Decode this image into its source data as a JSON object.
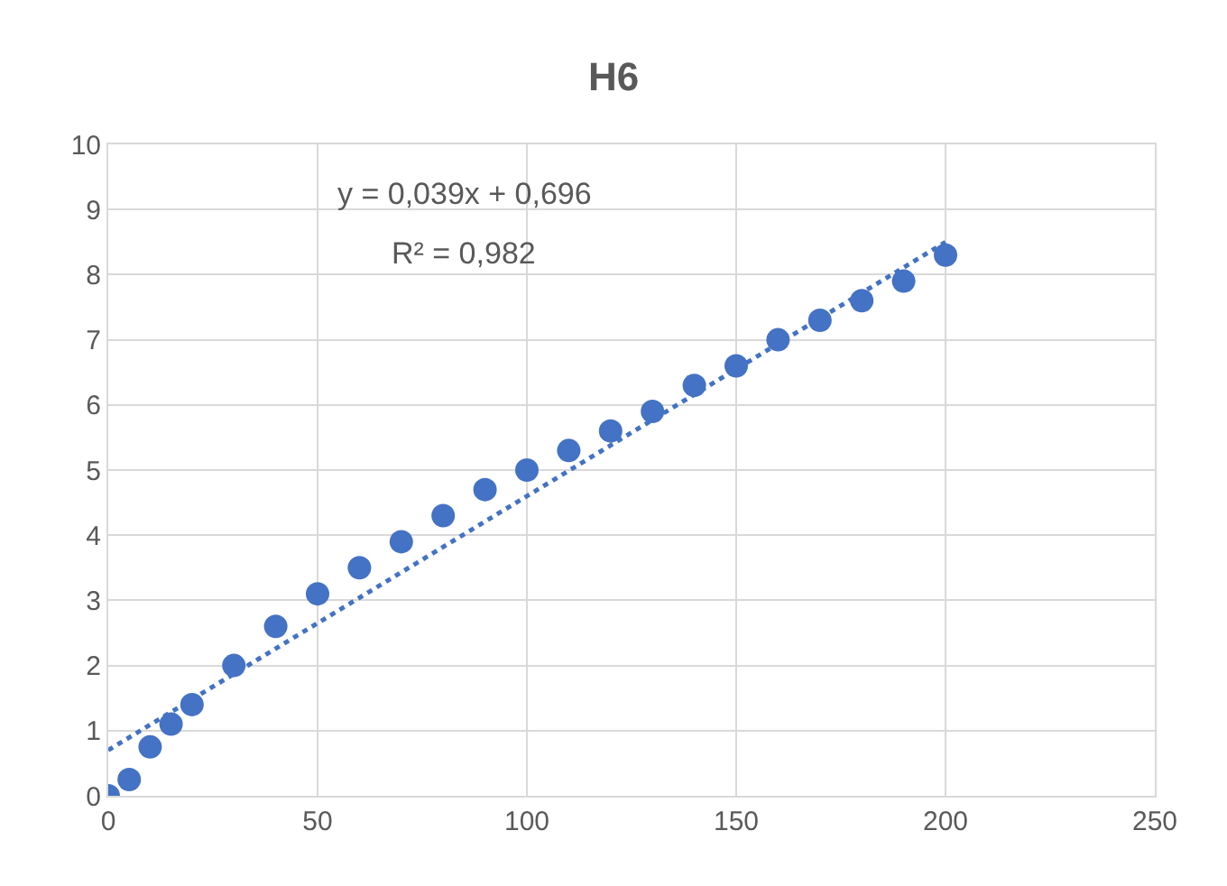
{
  "chart_data": {
    "type": "scatter",
    "title": "H6",
    "series": [
      {
        "color": "#4472c4",
        "marker": "circle",
        "x": [
          0,
          5,
          10,
          15,
          20,
          30,
          40,
          50,
          60,
          70,
          80,
          90,
          100,
          110,
          120,
          130,
          140,
          150,
          160,
          170,
          180,
          190,
          200
        ],
        "values": [
          0,
          0.25,
          0.75,
          1.1,
          1.4,
          2.0,
          2.6,
          3.1,
          3.5,
          3.9,
          4.3,
          4.7,
          5.0,
          5.3,
          5.6,
          5.9,
          6.3,
          6.6,
          7.0,
          7.3,
          7.6,
          7.9,
          8.3
        ]
      },
      {
        "type": "line",
        "color": "#4472c4",
        "line_style": "dotted",
        "x": [
          0,
          200
        ],
        "values": [
          0.7,
          8.5
        ]
      }
    ],
    "annotations": [
      "y = 0,039x + 0,696",
      "R² = 0,982"
    ],
    "xlim": [
      0,
      250
    ],
    "xticks": [
      0,
      50,
      100,
      150,
      200,
      250
    ],
    "ylim": [
      0,
      10
    ],
    "yticks": [
      0,
      1,
      2,
      3,
      4,
      5,
      6,
      7,
      8,
      9,
      10
    ],
    "grid": true
  }
}
